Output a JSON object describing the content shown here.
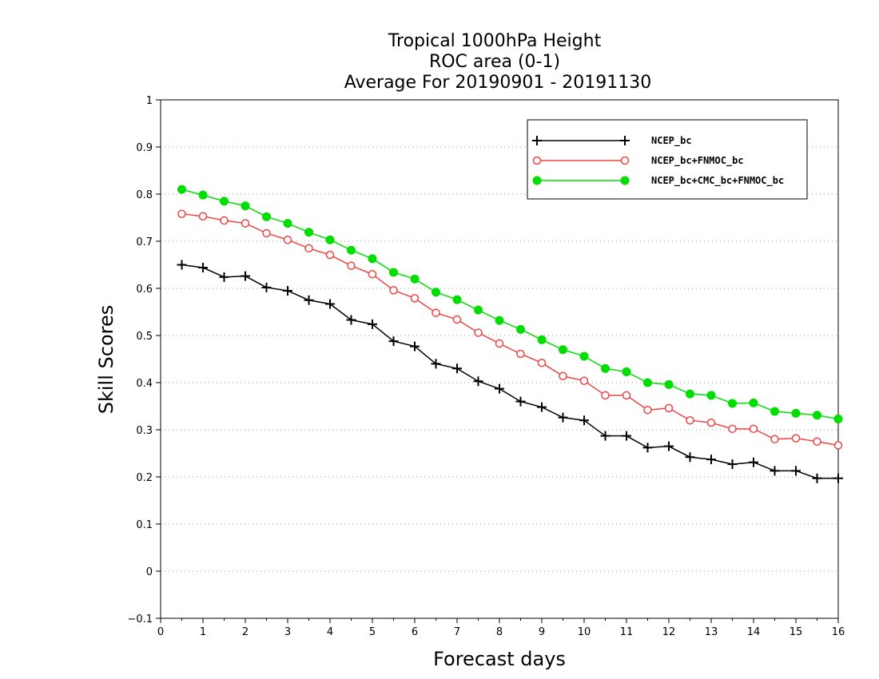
{
  "chart_data": {
    "type": "line",
    "title_lines": [
      "Tropical 1000hPa Height",
      "ROC area (0-1)",
      "Average For 20190901 - 20191130"
    ],
    "xlabel": "Forecast days",
    "ylabel": "Skill Scores",
    "xlim": [
      0,
      16
    ],
    "ylim": [
      -0.1,
      1
    ],
    "xticks": [
      0,
      1,
      2,
      3,
      4,
      5,
      6,
      7,
      8,
      9,
      10,
      11,
      12,
      13,
      14,
      15,
      16
    ],
    "yticks": [
      -0.1,
      0,
      0.1,
      0.2,
      0.3,
      0.4,
      0.5,
      0.6,
      0.7,
      0.8,
      0.9,
      1
    ],
    "xtick_labels": [
      "0",
      "1",
      "2",
      "3",
      "4",
      "5",
      "6",
      "7",
      "8",
      "9",
      "10",
      "11",
      "12",
      "13",
      "14",
      "15",
      "16"
    ],
    "ytick_labels": [
      "−0.1",
      "0",
      "0.1",
      "0.2",
      "0.3",
      "0.4",
      "0.5",
      "0.6",
      "0.7",
      "0.8",
      "0.9",
      "1"
    ],
    "grid": "horizontal dotted",
    "legend_position": "top-right",
    "x": [
      0.5,
      1,
      1.5,
      2,
      2.5,
      3,
      3.5,
      4,
      4.5,
      5,
      5.5,
      6,
      6.5,
      7,
      7.5,
      8,
      8.5,
      9,
      9.5,
      10,
      10.5,
      11,
      11.5,
      12,
      12.5,
      13,
      13.5,
      14,
      14.5,
      15,
      15.5,
      16
    ],
    "series": [
      {
        "name": "NCEP_bc",
        "color": "#000000",
        "marker": "plus",
        "values": [
          0.65,
          0.644,
          0.624,
          0.626,
          0.602,
          0.595,
          0.575,
          0.567,
          0.533,
          0.524,
          0.488,
          0.477,
          0.44,
          0.43,
          0.403,
          0.387,
          0.36,
          0.348,
          0.326,
          0.32,
          0.287,
          0.287,
          0.262,
          0.265,
          0.242,
          0.237,
          0.227,
          0.231,
          0.213,
          0.213,
          0.197,
          0.197
        ]
      },
      {
        "name": "NCEP_bc+FNMOC_bc",
        "color": "#ee4444",
        "marker": "open-circle",
        "values": [
          0.758,
          0.753,
          0.744,
          0.738,
          0.717,
          0.703,
          0.685,
          0.671,
          0.648,
          0.63,
          0.596,
          0.579,
          0.548,
          0.534,
          0.506,
          0.483,
          0.461,
          0.442,
          0.414,
          0.404,
          0.373,
          0.373,
          0.342,
          0.346,
          0.32,
          0.315,
          0.302,
          0.302,
          0.28,
          0.282,
          0.275,
          0.267
        ]
      },
      {
        "name": "NCEP_bc+CMC_bc+FNMOC_bc",
        "color": "#00dd00",
        "marker": "filled-circle",
        "values": [
          0.81,
          0.798,
          0.785,
          0.775,
          0.752,
          0.738,
          0.719,
          0.703,
          0.681,
          0.663,
          0.634,
          0.62,
          0.592,
          0.576,
          0.554,
          0.532,
          0.513,
          0.491,
          0.47,
          0.456,
          0.43,
          0.423,
          0.4,
          0.396,
          0.376,
          0.373,
          0.356,
          0.357,
          0.339,
          0.335,
          0.331,
          0.323
        ]
      }
    ]
  }
}
